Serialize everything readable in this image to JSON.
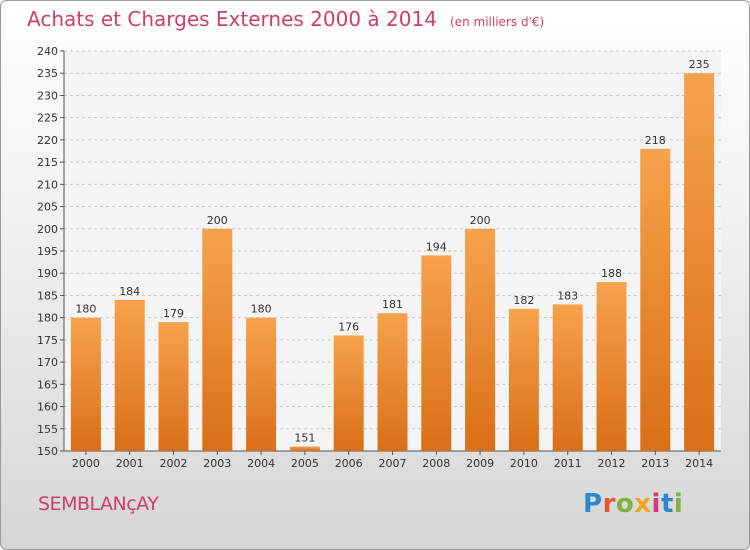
{
  "header": {
    "title": "Achats et Charges Externes 2000 à 2014",
    "subtitle": "(en milliers d'€)"
  },
  "footer": {
    "place": "SEMBLANçAY",
    "logo_text": "Proxiti",
    "logo_colors": [
      "#2c88c8",
      "#e65a2a",
      "#7cb342",
      "#f2a81c",
      "#d33a7b",
      "#2c88c8",
      "#7cb342"
    ]
  },
  "colors": {
    "bar_light": "#f7a24c",
    "bar_dark": "#d96f17",
    "title": "#cf3f67"
  },
  "chart_data": {
    "type": "bar",
    "categories": [
      "2000",
      "2001",
      "2002",
      "2003",
      "2004",
      "2005",
      "2006",
      "2007",
      "2008",
      "2009",
      "2010",
      "2011",
      "2012",
      "2013",
      "2014"
    ],
    "values": [
      180,
      184,
      179,
      200,
      180,
      151,
      176,
      181,
      194,
      200,
      182,
      183,
      188,
      218,
      235
    ],
    "ylim": [
      150,
      240
    ],
    "yticks": [
      150,
      155,
      160,
      165,
      170,
      175,
      180,
      185,
      190,
      195,
      200,
      205,
      210,
      215,
      220,
      225,
      230,
      235,
      240
    ],
    "grid": true
  }
}
